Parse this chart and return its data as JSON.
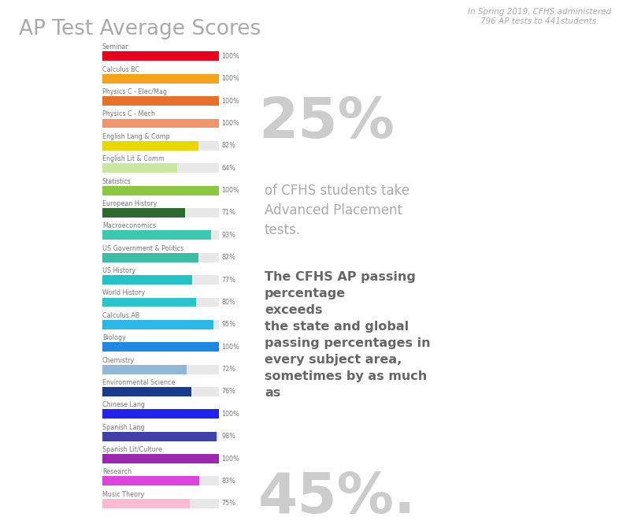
{
  "title": "AP Test Average Scores",
  "subtitle_italic": "In Spring 2019, CFHS administered\n796 AP tests to 441students.",
  "big_text_1": "25%",
  "body_text_1": "of CFHS students take\nAdvanced Placement\ntests.",
  "big_text_2": "45%.",
  "body_text_2": "The CFHS AP passing\npercentage\nexceeds\nthe state and global\npassing percentages in\nevery subject area,\nsometimes by as much\nas",
  "categories": [
    "Seminar",
    "Calculus BC",
    "Physics C - Elec/Mag",
    "Physics C - Mech",
    "English Lang & Comp",
    "English Lit & Comm",
    "Statistics",
    "European History",
    "Macroeconomics",
    "US Government & Politics",
    "US History",
    "World History",
    "Calculus AB",
    "Biology",
    "Chemistry",
    "Environmental Science",
    "Chinese Lang",
    "Spanish Lang",
    "Spanish Lit/Culture",
    "Research",
    "Music Theory"
  ],
  "values": [
    100,
    100,
    100,
    100,
    82,
    64,
    100,
    71,
    93,
    82,
    77,
    80,
    95,
    100,
    72,
    76,
    100,
    98,
    100,
    83,
    75
  ],
  "bar_colors": [
    "#e8001c",
    "#f5a31a",
    "#e8712a",
    "#f0956a",
    "#e8d800",
    "#c8e8a0",
    "#8cc63f",
    "#2d6a2d",
    "#39c9b0",
    "#3abfa6",
    "#20c4c4",
    "#29c4cc",
    "#29b8e8",
    "#1e88e5",
    "#90b8d8",
    "#1a3a8e",
    "#2222ee",
    "#4040aa",
    "#9c27b0",
    "#dd44dd",
    "#f8bbd0"
  ],
  "background_color": "#ffffff",
  "bar_max": 100,
  "label_color": "#777777",
  "value_color": "#777777",
  "title_color": "#aaaaaa",
  "subtitle_color": "#aaaaaa",
  "big_text_color": "#cccccc",
  "body1_color": "#aaaaaa",
  "body2_color": "#666666"
}
